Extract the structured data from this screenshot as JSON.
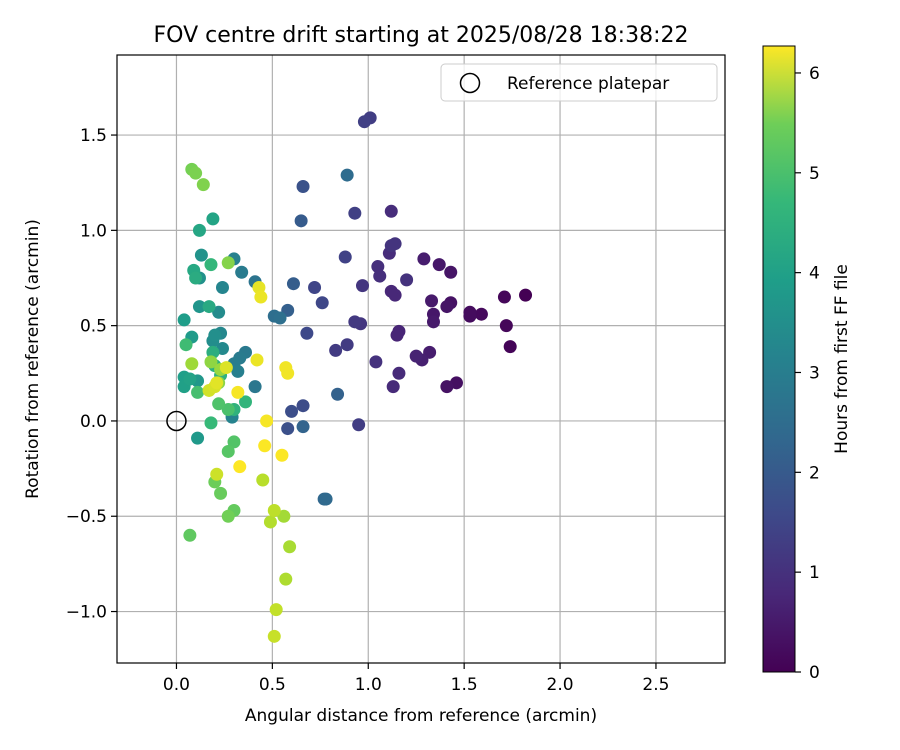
{
  "chart_data": {
    "type": "scatter",
    "title": "FOV centre drift starting at 2025/08/28 18:38:22",
    "xlabel": "Angular distance from reference (arcmin)",
    "ylabel": "Rotation from reference (arcmin)",
    "xlim": [
      -0.31,
      2.86
    ],
    "ylim": [
      -1.27,
      1.92
    ],
    "xticks": [
      0.0,
      0.5,
      1.0,
      1.5,
      2.0,
      2.5
    ],
    "xtick_labels": [
      "0.0",
      "0.5",
      "1.0",
      "1.5",
      "2.0",
      "2.5"
    ],
    "yticks": [
      -1.0,
      -0.5,
      0.0,
      0.5,
      1.0,
      1.5
    ],
    "ytick_labels": [
      "−1.0",
      "−0.5",
      "0.0",
      "0.5",
      "1.0",
      "1.5"
    ],
    "grid": true,
    "legend": {
      "position": "top-right",
      "entries": [
        "Reference platepar"
      ]
    },
    "reference_point": {
      "x": 0.0,
      "y": 0.0,
      "marker": "open-circle"
    },
    "colorbar": {
      "label": "Hours from first FF file",
      "range": [
        0,
        6.27
      ],
      "ticks": [
        0,
        1,
        2,
        3,
        4,
        5,
        6
      ],
      "tick_labels": [
        "0",
        "1",
        "2",
        "3",
        "4",
        "5",
        "6"
      ],
      "colormap": "viridis"
    },
    "points": [
      {
        "x": 1.82,
        "y": 0.66,
        "h": 0.0
      },
      {
        "x": 1.74,
        "y": 0.39,
        "h": 0.05
      },
      {
        "x": 1.72,
        "y": 0.5,
        "h": 0.1
      },
      {
        "x": 1.71,
        "y": 0.65,
        "h": 0.1
      },
      {
        "x": 1.59,
        "y": 0.56,
        "h": 0.15
      },
      {
        "x": 1.53,
        "y": 0.55,
        "h": 0.2
      },
      {
        "x": 1.53,
        "y": 0.57,
        "h": 0.2
      },
      {
        "x": 1.46,
        "y": 0.2,
        "h": 0.25
      },
      {
        "x": 1.41,
        "y": 0.18,
        "h": 0.3
      },
      {
        "x": 1.43,
        "y": 0.62,
        "h": 0.3
      },
      {
        "x": 1.43,
        "y": 0.78,
        "h": 0.35
      },
      {
        "x": 1.41,
        "y": 0.6,
        "h": 0.35
      },
      {
        "x": 1.37,
        "y": 0.82,
        "h": 0.4
      },
      {
        "x": 1.34,
        "y": 0.56,
        "h": 0.4
      },
      {
        "x": 1.34,
        "y": 0.52,
        "h": 0.45
      },
      {
        "x": 1.33,
        "y": 0.63,
        "h": 0.45
      },
      {
        "x": 1.29,
        "y": 0.85,
        "h": 0.5
      },
      {
        "x": 1.32,
        "y": 0.36,
        "h": 0.5
      },
      {
        "x": 1.28,
        "y": 0.32,
        "h": 0.55
      },
      {
        "x": 1.25,
        "y": 0.34,
        "h": 0.6
      },
      {
        "x": 1.16,
        "y": 0.47,
        "h": 0.65
      },
      {
        "x": 1.15,
        "y": 0.45,
        "h": 0.65
      },
      {
        "x": 1.14,
        "y": 0.66,
        "h": 0.7
      },
      {
        "x": 1.12,
        "y": 0.68,
        "h": 0.7
      },
      {
        "x": 1.16,
        "y": 0.25,
        "h": 0.75
      },
      {
        "x": 1.13,
        "y": 0.18,
        "h": 0.75
      },
      {
        "x": 1.11,
        "y": 0.88,
        "h": 0.8
      },
      {
        "x": 1.12,
        "y": 1.1,
        "h": 0.8
      },
      {
        "x": 1.05,
        "y": 0.81,
        "h": 0.85
      },
      {
        "x": 1.06,
        "y": 0.76,
        "h": 0.85
      },
      {
        "x": 1.04,
        "y": 0.31,
        "h": 0.9
      },
      {
        "x": 1.2,
        "y": 0.74,
        "h": 0.9
      },
      {
        "x": 1.14,
        "y": 0.93,
        "h": 0.95
      },
      {
        "x": 1.12,
        "y": 0.92,
        "h": 0.95
      },
      {
        "x": 0.97,
        "y": 0.71,
        "h": 1.0
      },
      {
        "x": 0.96,
        "y": 0.51,
        "h": 1.0
      },
      {
        "x": 0.93,
        "y": 0.52,
        "h": 1.05
      },
      {
        "x": 0.89,
        "y": 0.4,
        "h": 1.1
      },
      {
        "x": 0.83,
        "y": 0.37,
        "h": 1.1
      },
      {
        "x": 0.95,
        "y": -0.02,
        "h": 1.15
      },
      {
        "x": 1.01,
        "y": 1.59,
        "h": 1.15
      },
      {
        "x": 0.98,
        "y": 1.57,
        "h": 1.2
      },
      {
        "x": 0.93,
        "y": 1.09,
        "h": 1.2
      },
      {
        "x": 0.88,
        "y": 0.86,
        "h": 1.25
      },
      {
        "x": 0.72,
        "y": 0.7,
        "h": 1.3
      },
      {
        "x": 0.76,
        "y": 0.62,
        "h": 1.35
      },
      {
        "x": 0.68,
        "y": 0.46,
        "h": 1.4
      },
      {
        "x": 0.66,
        "y": 0.08,
        "h": 1.45
      },
      {
        "x": 0.6,
        "y": 0.05,
        "h": 1.5
      },
      {
        "x": 0.58,
        "y": -0.04,
        "h": 1.55
      },
      {
        "x": 0.66,
        "y": 1.23,
        "h": 1.6
      },
      {
        "x": 0.65,
        "y": 1.05,
        "h": 1.8
      },
      {
        "x": 0.61,
        "y": 0.72,
        "h": 1.85
      },
      {
        "x": 0.58,
        "y": 0.58,
        "h": 1.9
      },
      {
        "x": 0.84,
        "y": 0.14,
        "h": 1.95
      },
      {
        "x": 0.66,
        "y": -0.03,
        "h": 2.0
      },
      {
        "x": 0.77,
        "y": -0.41,
        "h": 2.1
      },
      {
        "x": 0.78,
        "y": -0.41,
        "h": 2.15
      },
      {
        "x": 0.89,
        "y": 1.29,
        "h": 2.2
      },
      {
        "x": 0.51,
        "y": 0.55,
        "h": 2.25
      },
      {
        "x": 0.54,
        "y": 0.54,
        "h": 2.3
      },
      {
        "x": 0.41,
        "y": 0.73,
        "h": 2.4
      },
      {
        "x": 0.41,
        "y": 0.18,
        "h": 2.5
      },
      {
        "x": 0.36,
        "y": 0.36,
        "h": 2.55
      },
      {
        "x": 0.34,
        "y": 0.78,
        "h": 2.6
      },
      {
        "x": 0.33,
        "y": 0.33,
        "h": 2.6
      },
      {
        "x": 0.3,
        "y": 0.3,
        "h": 2.65
      },
      {
        "x": 0.32,
        "y": 0.26,
        "h": 2.7
      },
      {
        "x": 0.3,
        "y": 0.85,
        "h": 2.75
      },
      {
        "x": 0.29,
        "y": 0.02,
        "h": 2.8
      },
      {
        "x": 0.24,
        "y": 0.7,
        "h": 2.85
      },
      {
        "x": 0.23,
        "y": 0.46,
        "h": 2.9
      },
      {
        "x": 0.24,
        "y": 0.38,
        "h": 2.95
      },
      {
        "x": 0.22,
        "y": 0.57,
        "h": 3.0
      },
      {
        "x": 0.19,
        "y": 0.42,
        "h": 3.05
      },
      {
        "x": 0.2,
        "y": 0.45,
        "h": 3.1
      },
      {
        "x": 0.12,
        "y": 0.75,
        "h": 3.15
      },
      {
        "x": 0.13,
        "y": 0.87,
        "h": 3.2
      },
      {
        "x": 0.12,
        "y": 0.6,
        "h": 3.25
      },
      {
        "x": 0.11,
        "y": 0.21,
        "h": 3.3
      },
      {
        "x": 0.11,
        "y": -0.09,
        "h": 3.35
      },
      {
        "x": 0.08,
        "y": 0.44,
        "h": 3.4
      },
      {
        "x": 0.04,
        "y": 0.53,
        "h": 3.45
      },
      {
        "x": 0.04,
        "y": 0.23,
        "h": 3.5
      },
      {
        "x": 0.04,
        "y": 0.18,
        "h": 3.55
      },
      {
        "x": 0.07,
        "y": 0.22,
        "h": 3.6
      },
      {
        "x": 0.19,
        "y": 1.06,
        "h": 3.65
      },
      {
        "x": 0.12,
        "y": 1.0,
        "h": 3.7
      },
      {
        "x": 0.09,
        "y": 0.79,
        "h": 3.75
      },
      {
        "x": 0.17,
        "y": 0.6,
        "h": 3.8
      },
      {
        "x": 0.1,
        "y": 0.75,
        "h": 3.85
      },
      {
        "x": 0.19,
        "y": 0.36,
        "h": 3.9
      },
      {
        "x": 0.2,
        "y": 0.29,
        "h": 3.95
      },
      {
        "x": 0.23,
        "y": 0.24,
        "h": 4.0
      },
      {
        "x": 0.3,
        "y": 0.06,
        "h": 4.05
      },
      {
        "x": 0.36,
        "y": 0.1,
        "h": 4.1
      },
      {
        "x": 0.18,
        "y": 0.82,
        "h": 4.15
      },
      {
        "x": 0.18,
        "y": -0.01,
        "h": 4.2
      },
      {
        "x": 0.05,
        "y": 0.4,
        "h": 4.3
      },
      {
        "x": 0.11,
        "y": 0.15,
        "h": 4.4
      },
      {
        "x": 0.27,
        "y": 0.06,
        "h": 4.45
      },
      {
        "x": 0.22,
        "y": 0.09,
        "h": 4.5
      },
      {
        "x": 0.3,
        "y": -0.11,
        "h": 4.55
      },
      {
        "x": 0.27,
        "y": -0.16,
        "h": 4.6
      },
      {
        "x": 0.07,
        "y": -0.6,
        "h": 4.7
      },
      {
        "x": 0.3,
        "y": -0.47,
        "h": 4.75
      },
      {
        "x": 0.23,
        "y": -0.38,
        "h": 4.8
      },
      {
        "x": 0.2,
        "y": -0.32,
        "h": 4.85
      },
      {
        "x": 0.27,
        "y": -0.5,
        "h": 4.9
      },
      {
        "x": 0.08,
        "y": 1.32,
        "h": 4.95
      },
      {
        "x": 0.1,
        "y": 1.3,
        "h": 5.0
      },
      {
        "x": 0.14,
        "y": 1.24,
        "h": 5.05
      },
      {
        "x": 0.27,
        "y": 0.83,
        "h": 5.1
      },
      {
        "x": 0.22,
        "y": 0.2,
        "h": 5.15
      },
      {
        "x": 0.18,
        "y": 0.31,
        "h": 5.2
      },
      {
        "x": 0.23,
        "y": 0.27,
        "h": 5.3
      },
      {
        "x": 0.08,
        "y": 0.3,
        "h": 5.35
      },
      {
        "x": 0.56,
        "y": -0.5,
        "h": 5.4
      },
      {
        "x": 0.59,
        "y": -0.66,
        "h": 5.45
      },
      {
        "x": 0.57,
        "y": -0.83,
        "h": 5.5
      },
      {
        "x": 0.49,
        "y": -0.53,
        "h": 5.55
      },
      {
        "x": 0.45,
        "y": -0.31,
        "h": 5.6
      },
      {
        "x": 0.51,
        "y": -0.47,
        "h": 5.65
      },
      {
        "x": 0.52,
        "y": -0.99,
        "h": 5.7
      },
      {
        "x": 0.51,
        "y": -1.13,
        "h": 5.75
      },
      {
        "x": 0.21,
        "y": -0.28,
        "h": 5.8
      },
      {
        "x": 0.17,
        "y": 0.16,
        "h": 5.85
      },
      {
        "x": 0.2,
        "y": 0.18,
        "h": 5.9
      },
      {
        "x": 0.26,
        "y": 0.28,
        "h": 5.95
      },
      {
        "x": 0.21,
        "y": 0.2,
        "h": 6.0
      },
      {
        "x": 0.43,
        "y": 0.7,
        "h": 6.05
      },
      {
        "x": 0.44,
        "y": 0.65,
        "h": 6.1
      },
      {
        "x": 0.42,
        "y": 0.32,
        "h": 6.1
      },
      {
        "x": 0.57,
        "y": 0.28,
        "h": 6.15
      },
      {
        "x": 0.58,
        "y": 0.25,
        "h": 6.15
      },
      {
        "x": 0.32,
        "y": 0.15,
        "h": 6.2
      },
      {
        "x": 0.47,
        "y": 0.0,
        "h": 6.2
      },
      {
        "x": 0.46,
        "y": -0.13,
        "h": 6.25
      },
      {
        "x": 0.55,
        "y": -0.18,
        "h": 6.25
      },
      {
        "x": 0.33,
        "y": -0.24,
        "h": 6.27
      }
    ]
  }
}
